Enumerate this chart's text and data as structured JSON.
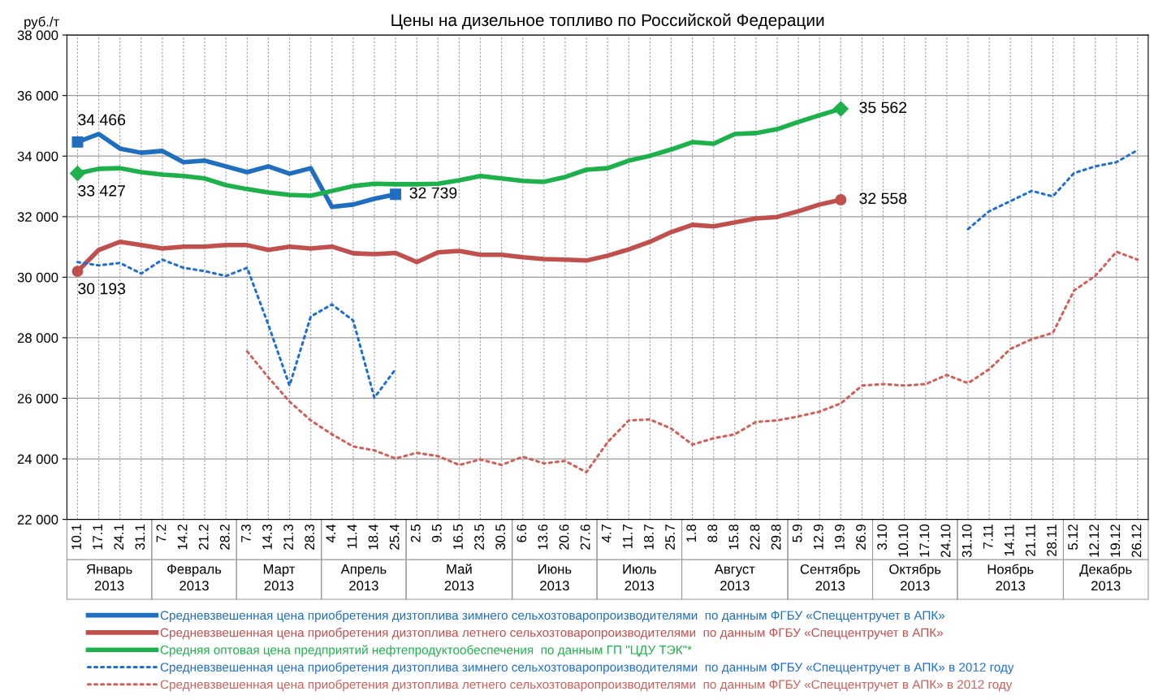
{
  "chart_data": {
    "type": "line",
    "title": "Цены на дизельное топливо по Российской Федерации",
    "ylabel": "руб./т",
    "categories": [
      "10.1",
      "17.1",
      "24.1",
      "31.1",
      "7.2",
      "14.2",
      "21.2",
      "28.2",
      "7.3",
      "14.3",
      "21.3",
      "28.3",
      "4.4",
      "11.4",
      "18.4",
      "25.4",
      "2.5",
      "9.5",
      "16.5",
      "23.5",
      "30.5",
      "6.6",
      "13.6",
      "20.6",
      "27.6",
      "4.7",
      "11.7",
      "18.7",
      "25.7",
      "1.8",
      "8.8",
      "15.8",
      "22.8",
      "29.8",
      "5.9",
      "12.9",
      "19.9",
      "26.9",
      "3.10",
      "10.10",
      "17.10",
      "24.10",
      "31.10",
      "7.11",
      "14.11",
      "21.11",
      "28.11",
      "5.12",
      "12.12",
      "19.12",
      "26.12"
    ],
    "series": [
      {
        "name": "Средневзвешенная цена приобретения дизтоплива зимнего сельхозтоваропроизводителями  по данным ФГБУ «Спеццентручет в АПК»",
        "color": "#1f6ebf",
        "line_style": "solid",
        "values": [
          34466,
          34730,
          34250,
          34110,
          34170,
          33800,
          33850,
          33660,
          33470,
          33660,
          33420,
          33600,
          32320,
          32400,
          32590,
          32739,
          null,
          null,
          null,
          null,
          null,
          null,
          null,
          null,
          null,
          null,
          null,
          null,
          null,
          null,
          null,
          null,
          null,
          null,
          null,
          null,
          null,
          null,
          null,
          null,
          null,
          null,
          null,
          null,
          null,
          null,
          null,
          null,
          null,
          null,
          null
        ]
      },
      {
        "name": "Средневзвешенная цена приобретения дизтоплива летнего сельхозтоваропроизводителями  по данным ФГБУ «Спеццентручет в АПК»",
        "color": "#c0504d",
        "line_style": "solid",
        "values": [
          30193,
          30900,
          31170,
          31060,
          30950,
          31010,
          31010,
          31060,
          31060,
          30900,
          31010,
          30950,
          31010,
          30790,
          30760,
          30800,
          30500,
          30820,
          30870,
          30740,
          30740,
          30660,
          30600,
          30580,
          30550,
          30710,
          30920,
          31170,
          31490,
          31730,
          31680,
          31810,
          31940,
          31990,
          32180,
          32400,
          32558,
          null,
          null,
          null,
          null,
          null,
          null,
          null,
          null,
          null,
          null,
          null,
          null,
          null,
          null
        ]
      },
      {
        "name": "Средняя оптовая цена предприятий нефтепродуктообеспечения  по данным ГП \"ЦДУ ТЭК\"*",
        "color": "#1db04b",
        "line_style": "solid",
        "values": [
          33427,
          33580,
          33600,
          33470,
          33390,
          33340,
          33260,
          33040,
          32910,
          32800,
          32720,
          32690,
          32850,
          33010,
          33090,
          33070,
          33070,
          33090,
          33200,
          33340,
          33260,
          33180,
          33150,
          33310,
          33550,
          33600,
          33850,
          34010,
          34220,
          34460,
          34410,
          34730,
          34760,
          34890,
          35130,
          35350,
          35562,
          null,
          null,
          null,
          null,
          null,
          null,
          null,
          null,
          null,
          null,
          null,
          null,
          null,
          null
        ]
      },
      {
        "name": "Средневзвешенная цена приобретения дизтоплива зимнего сельхозтоваропроизводителями  по данным ФГБУ «Спеццентручет в АПК» в 2012 году",
        "color": "#1f6ed4",
        "line_style": "dotted",
        "values": [
          30500,
          30390,
          30470,
          30120,
          30580,
          30310,
          30200,
          30040,
          30310,
          28430,
          26420,
          28700,
          29100,
          28570,
          26020,
          26960,
          null,
          null,
          null,
          null,
          null,
          null,
          null,
          null,
          null,
          null,
          null,
          null,
          null,
          null,
          null,
          null,
          null,
          null,
          null,
          null,
          null,
          null,
          null,
          null,
          null,
          null,
          31590,
          32180,
          32510,
          32850,
          32670,
          33440,
          33660,
          33800,
          34200
        ]
      },
      {
        "name": "Средневзвешенная цена приобретения дизтоплива летнего сельхозтоваропроизводителями  по данным ФГБУ «Спеццентручет в АПК» в 2012 году",
        "color": "#d0605a",
        "line_style": "dotted",
        "values": [
          null,
          null,
          null,
          null,
          null,
          null,
          null,
          null,
          27550,
          26690,
          25890,
          25270,
          24810,
          24410,
          24280,
          24010,
          24200,
          24090,
          23800,
          23980,
          23800,
          24070,
          23850,
          23930,
          23560,
          24550,
          25270,
          25300,
          25000,
          24470,
          24680,
          24810,
          25220,
          25270,
          25400,
          25560,
          25830,
          26420,
          26470,
          26420,
          26470,
          26770,
          26500,
          26960,
          27630,
          27950,
          28160,
          29560,
          30040,
          30840,
          30580
        ]
      }
    ],
    "ylim": [
      22000,
      38000
    ],
    "yticks": [
      {
        "value": 22000,
        "label": "22 000"
      },
      {
        "value": 24000,
        "label": "24 000"
      },
      {
        "value": 26000,
        "label": "26 000"
      },
      {
        "value": 28000,
        "label": "28 000"
      },
      {
        "value": 30000,
        "label": "30 000"
      },
      {
        "value": 32000,
        "label": "32 000"
      },
      {
        "value": 34000,
        "label": "34 000"
      },
      {
        "value": 36000,
        "label": "36 000"
      },
      {
        "value": 38000,
        "label": "38 000"
      }
    ],
    "grid": true,
    "legend": "bottom",
    "annotations": [
      {
        "text": "34 466",
        "x": "10.1",
        "y": 34466
      },
      {
        "text": "33 427",
        "x": "10.1",
        "y": 33427
      },
      {
        "text": "30 193",
        "x": "10.1",
        "y": 30193
      },
      {
        "text": "32 739",
        "x": "25.4",
        "y": 32739
      },
      {
        "text": "35 562",
        "x": "19.9",
        "y": 35562
      },
      {
        "text": "32 558",
        "x": "19.9",
        "y": 32558
      },
      "Январь\n2013",
      "Февраль\n2013",
      "Март\n2013",
      "Апрель\n2013",
      "Май\n2013",
      "Июнь\n2013",
      "Июль\n2013",
      "Август\n2013",
      "Сентябрь\n2013",
      "Октябрь\n2013",
      "Ноябрь\n2013",
      "Декабрь\n2013"
    ]
  }
}
